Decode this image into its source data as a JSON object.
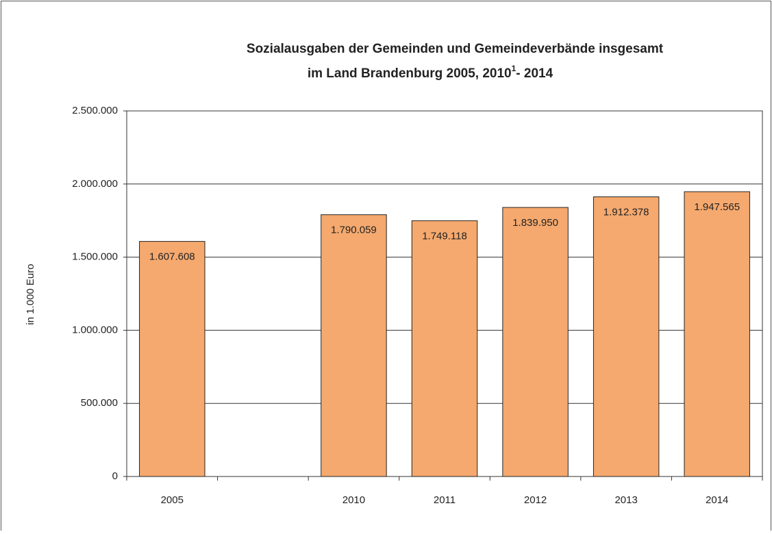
{
  "chart_data": {
    "type": "bar",
    "title": [
      "Sozialausgaben der Gemeinden und Gemeindeverbände insgesamt",
      "im Land Brandenburg 2005, 2010",
      "1",
      "- 2014"
    ],
    "y_axis_label": "in 1.000 Euro",
    "categories": [
      "2005",
      null,
      "2010",
      "2011",
      "2012",
      "2013",
      "2014"
    ],
    "values": [
      1607608,
      null,
      1790059,
      1749118,
      1839950,
      1912378,
      1947565
    ],
    "value_labels": [
      "1.607.608",
      null,
      "1.790.059",
      "1.749.118",
      "1.839.950",
      "1.912.378",
      "1.947.565"
    ],
    "color": "#f5a96e",
    "ylim": [
      0,
      2500000
    ],
    "yticks": [
      0,
      {
        "value": 500000,
        "label": "500.000"
      },
      {
        "value": 1000000,
        "label": "1.000.000"
      },
      {
        "value": 1500000,
        "label": "1.500.000"
      },
      {
        "value": 2000000,
        "label": "2.000.000"
      },
      {
        "value": 2500000,
        "label": "2.500.000"
      }
    ],
    "grid": true
  }
}
